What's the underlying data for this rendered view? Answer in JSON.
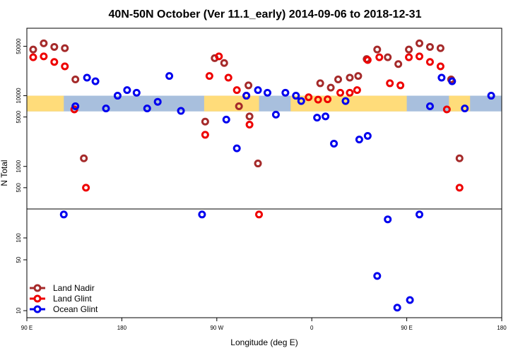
{
  "chart_data": {
    "type": "scatter",
    "title": "40N-50N October (Ver 11.1_early)   2014-09-06 to 2018-12-31",
    "xlabel": "Longitude (deg E)",
    "ylabel": "N Total",
    "x_ticks": [
      {
        "value": 90,
        "label": "90 E"
      },
      {
        "value": 180,
        "label": "180"
      },
      {
        "value": 270,
        "label": "90 W"
      },
      {
        "value": 360,
        "label": "0"
      },
      {
        "value": 450,
        "label": "90 E"
      },
      {
        "value": 540,
        "label": "180"
      }
    ],
    "upper_y_ticks": [
      {
        "value": 500,
        "label": "500"
      },
      {
        "value": 1000,
        "label": "1000"
      },
      {
        "value": 5000,
        "label": "5000"
      },
      {
        "value": 10000,
        "label": "10000"
      },
      {
        "value": 50000,
        "label": "50000"
      }
    ],
    "lower_y_ticks": [
      {
        "value": 10,
        "label": "10"
      },
      {
        "value": 50,
        "label": "50"
      },
      {
        "value": 100,
        "label": "100"
      }
    ],
    "xlim": [
      90,
      540
    ],
    "upper_ylim": [
      250,
      90000
    ],
    "lower_ylim": [
      8,
      250
    ],
    "y_scale": "log",
    "legend_position": "bottom-left",
    "colors": {
      "land": "#ffdc7a",
      "ocean": "#a8bfdd"
    },
    "series": [
      {
        "name": "Land Nadir",
        "color": "#a52a2a",
        "points": [
          [
            96,
            45000
          ],
          [
            106,
            55000
          ],
          [
            116,
            49000
          ],
          [
            126,
            47000
          ],
          [
            136,
            17000
          ],
          [
            144,
            1300
          ],
          [
            259,
            4300
          ],
          [
            268,
            34000
          ],
          [
            277,
            29000
          ],
          [
            291,
            7100
          ],
          [
            300,
            14000
          ],
          [
            301,
            5100
          ],
          [
            309,
            1100
          ],
          [
            368,
            15000
          ],
          [
            378,
            13000
          ],
          [
            385,
            17000
          ],
          [
            396,
            18000
          ],
          [
            404,
            19000
          ],
          [
            412,
            33000
          ],
          [
            422,
            45000
          ],
          [
            432,
            35000
          ],
          [
            442,
            28000
          ],
          [
            452,
            45000
          ],
          [
            462,
            55000
          ],
          [
            472,
            49000
          ],
          [
            482,
            47000
          ],
          [
            492,
            17000
          ],
          [
            500,
            1300
          ]
        ]
      },
      {
        "name": "Land Glint",
        "color": "#ee0000",
        "points": [
          [
            96,
            35000
          ],
          [
            106,
            36000
          ],
          [
            116,
            30000
          ],
          [
            126,
            26000
          ],
          [
            135,
            6400
          ],
          [
            146,
            500
          ],
          [
            259,
            2800
          ],
          [
            263,
            19000
          ],
          [
            272,
            36000
          ],
          [
            281,
            18000
          ],
          [
            289,
            12000
          ],
          [
            298,
            10000
          ],
          [
            310,
            210
          ],
          [
            301,
            3900
          ],
          [
            357,
            9500
          ],
          [
            366,
            8800
          ],
          [
            375,
            8900
          ],
          [
            387,
            11000
          ],
          [
            396,
            11000
          ],
          [
            403,
            12000
          ],
          [
            413,
            32000
          ],
          [
            424,
            35000
          ],
          [
            434,
            15000
          ],
          [
            444,
            14000
          ],
          [
            452,
            35000
          ],
          [
            462,
            36000
          ],
          [
            472,
            30000
          ],
          [
            482,
            26000
          ],
          [
            488,
            6400
          ],
          [
            500,
            500
          ]
        ]
      },
      {
        "name": "Ocean Glint",
        "color": "#0000ee",
        "points": [
          [
            125,
            210
          ],
          [
            136,
            7100
          ],
          [
            147,
            18000
          ],
          [
            155,
            16000
          ],
          [
            165,
            6600
          ],
          [
            176,
            10000
          ],
          [
            185,
            12000
          ],
          [
            194,
            11000
          ],
          [
            204,
            6600
          ],
          [
            214,
            8200
          ],
          [
            225,
            19000
          ],
          [
            236,
            6100
          ],
          [
            256,
            210
          ],
          [
            279,
            4600
          ],
          [
            289,
            1800
          ],
          [
            298,
            10000
          ],
          [
            309,
            12000
          ],
          [
            318,
            11000
          ],
          [
            326,
            5400
          ],
          [
            335,
            11000
          ],
          [
            345,
            10000
          ],
          [
            350,
            8400
          ],
          [
            365,
            4900
          ],
          [
            373,
            5100
          ],
          [
            381,
            2100
          ],
          [
            392,
            8400
          ],
          [
            405,
            2400
          ],
          [
            413,
            2700
          ],
          [
            422,
            30
          ],
          [
            432,
            180
          ],
          [
            441,
            11
          ],
          [
            453,
            14
          ],
          [
            462,
            210
          ],
          [
            472,
            7100
          ],
          [
            483,
            18000
          ],
          [
            493,
            16000
          ],
          [
            505,
            6600
          ],
          [
            530,
            10000
          ]
        ]
      }
    ]
  }
}
